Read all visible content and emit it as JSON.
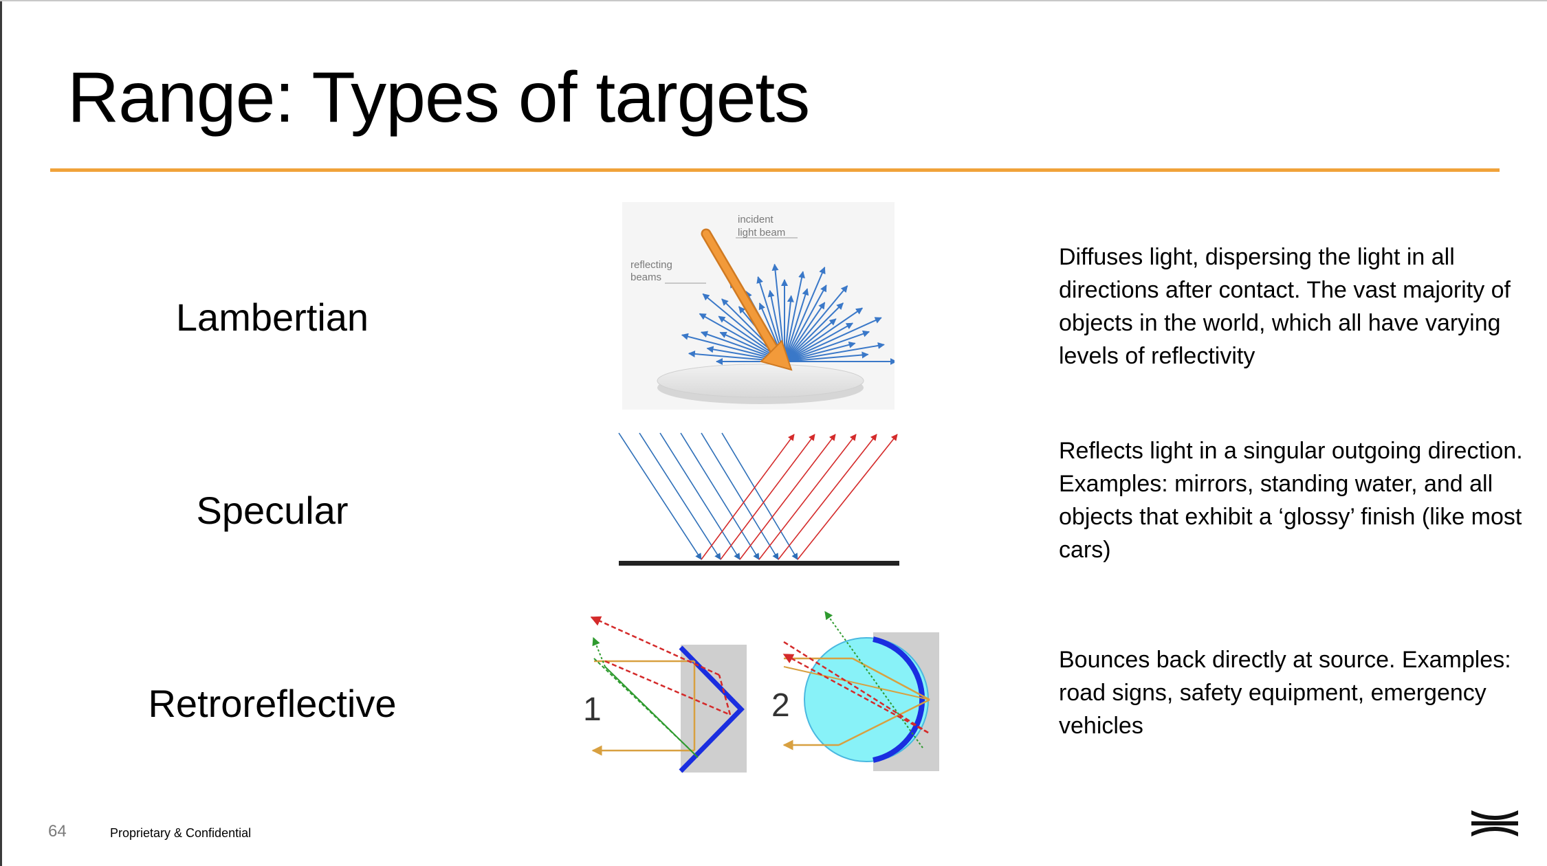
{
  "slide": {
    "title": "Range: Types of targets",
    "page_number": "64",
    "footer": "Proprietary & Confidential",
    "accent_color": "#f0a23a",
    "logo_icon": "brand-logo-icon"
  },
  "rows": [
    {
      "label": "Lambertian",
      "description": "Diffuses light, dispersing the light in all directions after contact. The vast majority of objects in the world, which all have varying levels of reflectivity",
      "figure_labels": {
        "incident": [
          "incident",
          "light beam"
        ],
        "reflecting": [
          "reflecting",
          "beams"
        ]
      }
    },
    {
      "label": "Specular",
      "description": "Reflects light in a singular outgoing direction. Examples: mirrors, standing water, and all objects that exhibit a ‘glossy’ finish (like most cars)"
    },
    {
      "label": "Retroreflective",
      "description": "Bounces back directly at source. Examples: road signs, safety equipment, emergency vehicles",
      "figure_labels": {
        "one": "1",
        "two": "2"
      }
    }
  ]
}
